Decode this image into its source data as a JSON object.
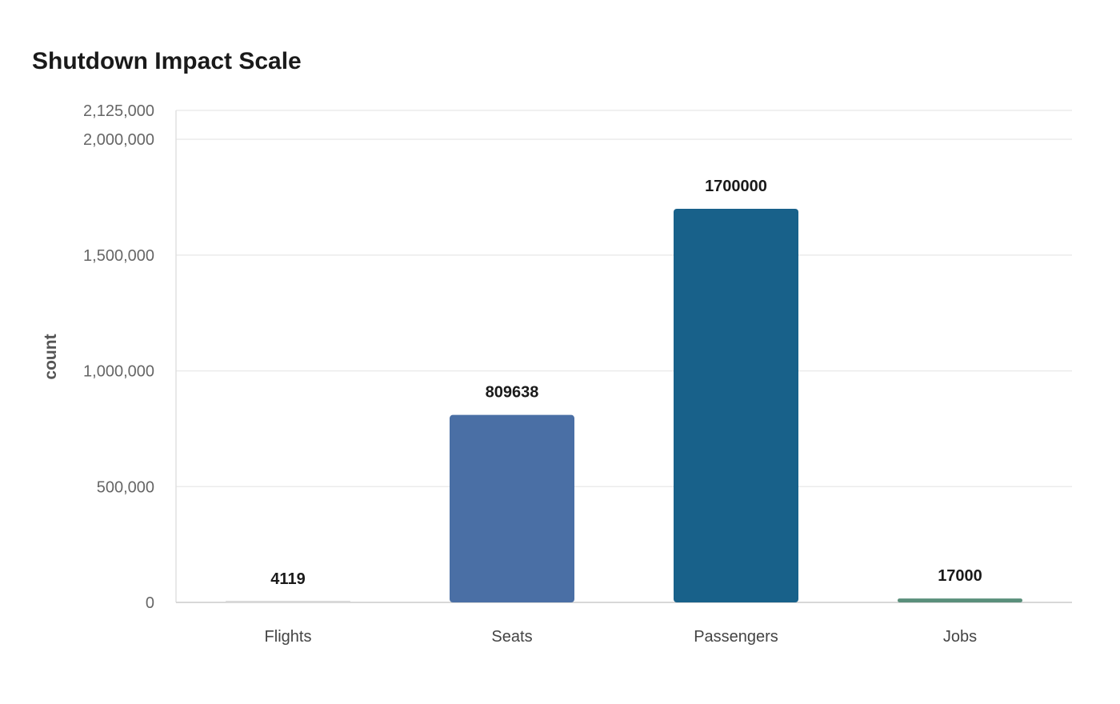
{
  "chart_data": {
    "type": "bar",
    "title": "Shutdown Impact Scale",
    "xlabel": "",
    "ylabel": "count",
    "categories": [
      "Flights",
      "Seats",
      "Passengers",
      "Jobs"
    ],
    "values": [
      4119,
      809638,
      1700000,
      17000
    ],
    "value_labels": [
      "4119",
      "809638",
      "1700000",
      "17000"
    ],
    "colors": [
      "#d9d9d9",
      "#4a6fa5",
      "#18618a",
      "#5a8f7b"
    ],
    "ylim": [
      0,
      2125000
    ],
    "yticks": [
      0,
      500000,
      1000000,
      1500000,
      2000000,
      2125000
    ],
    "ytick_labels": [
      "0",
      "500,000",
      "1,000,000",
      "1,500,000",
      "2,000,000",
      "2,125,000"
    ],
    "grid": true,
    "legend": "none"
  }
}
